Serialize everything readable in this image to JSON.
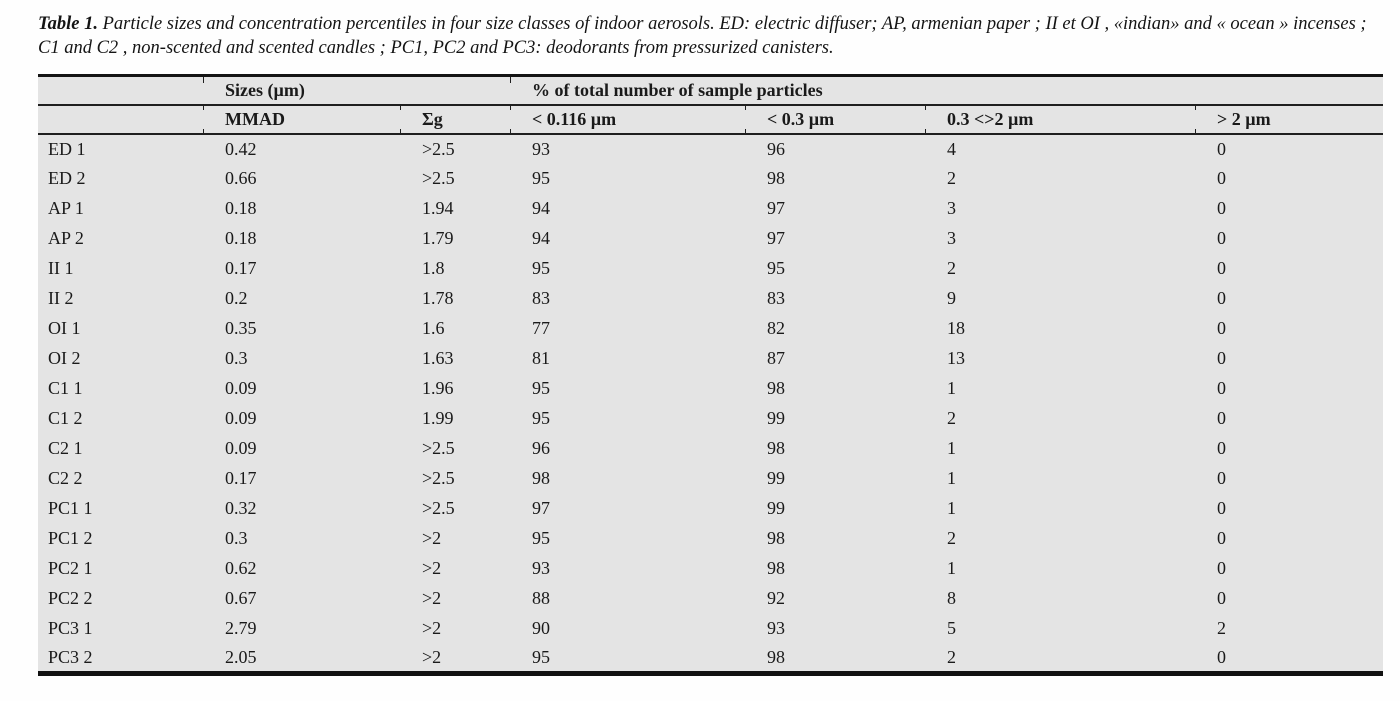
{
  "caption": {
    "label": "Table 1.",
    "text": " Particle sizes and concentration percentiles in four size classes of indoor aerosols. ED: electric diffuser; AP, armenian paper ; II et OI , «indian» and « ocean » incenses ; C1 and C2 , non-scented and scented candles ; PC1, PC2 and PC3: deodorants from pressurized canisters."
  },
  "table": {
    "group_headers": {
      "sizes": "Sizes (µm)",
      "percent": "% of total number of sample particles"
    },
    "column_headers": {
      "mmad": "MMAD",
      "sigma_g": "Σg",
      "lt_0116": "< 0.116 µm",
      "lt_03": "< 0.3 µm",
      "between_03_2": "0.3 <>2 µm",
      "gt_2": "> 2 µm"
    },
    "rows": [
      {
        "label": "ED 1",
        "values": [
          "0.42",
          ">2.5",
          "93",
          "96",
          "4",
          "0"
        ]
      },
      {
        "label": "ED 2",
        "values": [
          "0.66",
          ">2.5",
          "95",
          "98",
          "2",
          "0"
        ]
      },
      {
        "label": "AP 1",
        "values": [
          "0.18",
          "1.94",
          "94",
          "97",
          "3",
          "0"
        ]
      },
      {
        "label": "AP 2",
        "values": [
          "0.18",
          "1.79",
          "94",
          "97",
          "3",
          "0"
        ]
      },
      {
        "label": "II 1",
        "values": [
          "0.17",
          "1.8",
          "95",
          "95",
          "2",
          "0"
        ]
      },
      {
        "label": "II 2",
        "values": [
          "0.2",
          "1.78",
          "83",
          "83",
          "9",
          "0"
        ]
      },
      {
        "label": "OI 1",
        "values": [
          "0.35",
          "1.6",
          "77",
          "82",
          "18",
          "0"
        ]
      },
      {
        "label": "OI 2",
        "values": [
          "0.3",
          "1.63",
          "81",
          "87",
          "13",
          "0"
        ]
      },
      {
        "label": "C1 1",
        "values": [
          "0.09",
          "1.96",
          "95",
          "98",
          "1",
          "0"
        ]
      },
      {
        "label": "C1 2",
        "values": [
          "0.09",
          "1.99",
          "95",
          "99",
          "2",
          "0"
        ]
      },
      {
        "label": "C2 1",
        "values": [
          "0.09",
          ">2.5",
          "96",
          "98",
          "1",
          "0"
        ]
      },
      {
        "label": "C2 2",
        "values": [
          "0.17",
          ">2.5",
          "98",
          "99",
          "1",
          "0"
        ]
      },
      {
        "label": "PC1 1",
        "values": [
          "0.32",
          ">2.5",
          "97",
          "99",
          "1",
          "0"
        ]
      },
      {
        "label": "PC1 2",
        "values": [
          "0.3",
          ">2",
          "95",
          "98",
          "2",
          "0"
        ]
      },
      {
        "label": "PC2 1",
        "values": [
          "0.62",
          ">2",
          "93",
          "98",
          "1",
          "0"
        ]
      },
      {
        "label": "PC2 2",
        "values": [
          "0.67",
          ">2",
          "88",
          "92",
          "8",
          "0"
        ]
      },
      {
        "label": "PC3 1",
        "values": [
          "2.79",
          ">2",
          "90",
          "93",
          "5",
          "2"
        ]
      },
      {
        "label": "PC3 2",
        "values": [
          "2.05",
          ">2",
          "95",
          "98",
          "2",
          "0"
        ]
      }
    ]
  },
  "colors": {
    "table_background": "#e4e4e4",
    "rule": "#1a1a1a",
    "text": "#1a1a1a",
    "page_background": "#fefefe"
  }
}
